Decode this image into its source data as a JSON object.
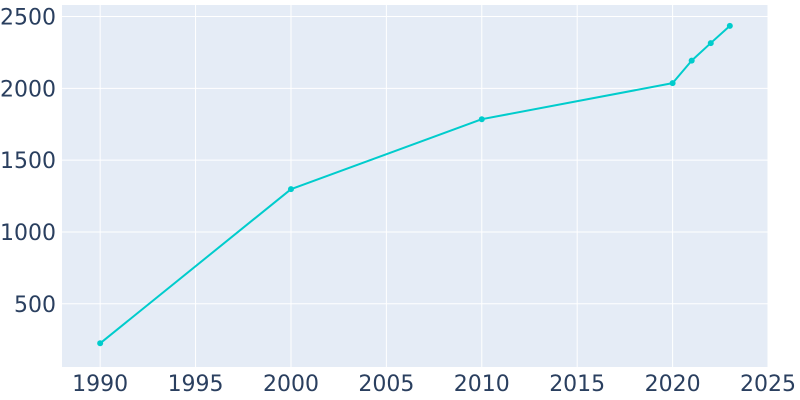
{
  "chart_data": {
    "type": "line",
    "title": "",
    "xlabel": "",
    "ylabel": "",
    "xlim": [
      1988,
      2025
    ],
    "ylim": [
      60,
      2580
    ],
    "x_ticks": [
      1990,
      1995,
      2000,
      2005,
      2010,
      2015,
      2020,
      2025
    ],
    "y_ticks": [
      500,
      1000,
      1500,
      2000,
      2500
    ],
    "x_tick_labels": [
      "1990",
      "1995",
      "2000",
      "2005",
      "2010",
      "2015",
      "2020",
      "2025"
    ],
    "y_tick_labels": [
      "500",
      "1000",
      "1500",
      "2000",
      "2500"
    ],
    "grid": true,
    "legend": "none",
    "colors": {
      "plot_background": "#e5ecf6",
      "grid": "#ffffff",
      "line": "#00cccc",
      "text": "#2a3f5f"
    },
    "series": [
      {
        "x": [
          1990,
          2000,
          2010,
          2020,
          2021,
          2022,
          2023
        ],
        "y": [
          225,
          1298,
          1785,
          2036,
          2193,
          2315,
          2435
        ]
      }
    ]
  }
}
